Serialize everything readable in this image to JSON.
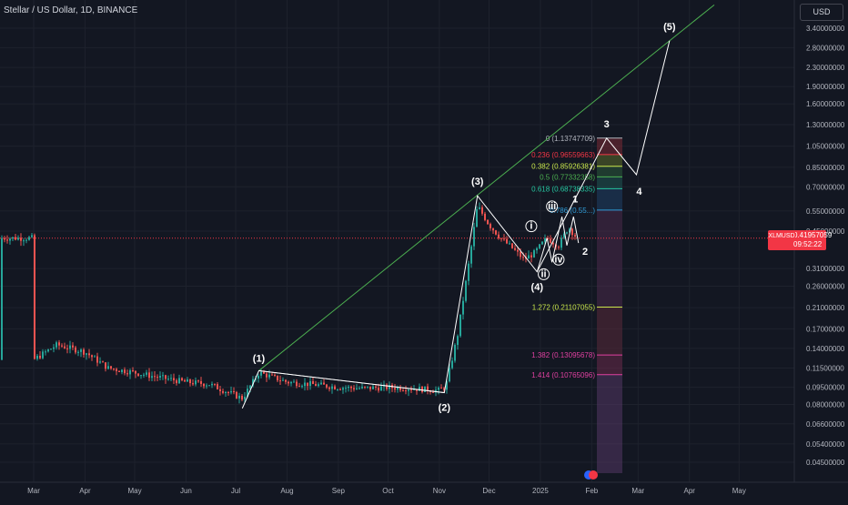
{
  "header": {
    "title": "Stellar / US Dollar, 1D, BINANCE"
  },
  "price_axis": {
    "currency_button": "USD",
    "ticks": [
      "3.40000000",
      "2.80000000",
      "2.30000000",
      "1.90000000",
      "1.60000000",
      "1.30000000",
      "1.05000000",
      "0.85000000",
      "0.70000000",
      "0.55000000",
      "0.45000000",
      "0.31000000",
      "0.26000000",
      "0.21000000",
      "0.17000000",
      "0.14000000",
      "0.11500000",
      "0.09500000",
      "0.08000000",
      "0.06600000",
      "0.05400000",
      "0.04500000"
    ]
  },
  "time_axis": {
    "ticks": [
      "Mar",
      "Apr",
      "May",
      "Jun",
      "Jul",
      "Aug",
      "Sep",
      "Oct",
      "Nov",
      "Dec",
      "2025",
      "Feb",
      "Mar",
      "Apr",
      "May"
    ]
  },
  "last_price": {
    "symbol": "XLMUSD",
    "price": "0.41957059",
    "countdown": "09:52:22",
    "color": "#f23645"
  },
  "fib_levels": [
    {
      "label": "0 (1.13747709)",
      "value": 1.13747709,
      "color": "#b2b5be"
    },
    {
      "label": "0.236 (0.96559663)",
      "value": 0.96559663,
      "color": "#f23645"
    },
    {
      "label": "0.382 (0.85926381)",
      "value": 0.85926381,
      "color": "#c8e64b"
    },
    {
      "label": "0.5 (0.77332358)",
      "value": 0.77332358,
      "color": "#4caf50"
    },
    {
      "label": "0.618 (0.68738335)",
      "value": 0.68738335,
      "color": "#26c6a0"
    },
    {
      "label": "0.786 (0.55...)",
      "value": 0.555,
      "color": "#2f9bd6"
    },
    {
      "label": "1.272 (0.21107055)",
      "value": 0.21107055,
      "color": "#c8e64b"
    },
    {
      "label": "1.382 (0.13095678)",
      "value": 0.13095678,
      "color": "#e040a0"
    },
    {
      "label": "1.414 (0.10765096)",
      "value": 0.10765096,
      "color": "#e040a0"
    }
  ],
  "wave_labels": [
    "(1)",
    "(2)",
    "(3)",
    "(4)",
    "(5)",
    "i",
    "ii",
    "iii",
    "iv",
    "1",
    "2",
    "3",
    "4"
  ],
  "colors": {
    "background": "#131722",
    "up": "#26a69a",
    "down": "#ef5350",
    "wave_line": "#ffffff",
    "trend_line": "#4caf50"
  },
  "chart_data": {
    "type": "candlestick",
    "title": "Stellar / US Dollar, 1D, BINANCE",
    "yscale": "log",
    "ylim": [
      0.04,
      3.6
    ],
    "x_range": [
      "2024-03-01",
      "2025-05-31"
    ],
    "last_price": 0.41957059,
    "series": [
      {
        "name": "XLMUSD",
        "x": [
          "2024-03-01",
          "2024-03-15",
          "2024-04-01",
          "2024-04-15",
          "2024-05-01",
          "2024-05-15",
          "2024-06-01",
          "2024-06-15",
          "2024-07-05",
          "2024-07-15",
          "2024-08-01",
          "2024-08-15",
          "2024-09-01",
          "2024-09-15",
          "2024-10-01",
          "2024-10-15",
          "2024-11-01",
          "2024-11-05",
          "2024-11-12",
          "2024-11-18",
          "2024-11-24",
          "2024-12-01",
          "2024-12-08",
          "2024-12-15",
          "2024-12-22",
          "2024-12-28",
          "2025-01-05",
          "2025-01-12",
          "2025-01-18",
          "2025-01-23"
        ],
        "values": [
          0.125,
          0.145,
          0.135,
          0.115,
          0.11,
          0.105,
          0.1,
          0.098,
          0.085,
          0.11,
          0.1,
          0.098,
          0.095,
          0.094,
          0.095,
          0.094,
          0.092,
          0.096,
          0.16,
          0.3,
          0.58,
          0.48,
          0.42,
          0.38,
          0.34,
          0.36,
          0.42,
          0.39,
          0.47,
          0.42
        ]
      }
    ],
    "wave_points": [
      {
        "label": "(1)",
        "x": "2024-07-15",
        "y": 0.112
      },
      {
        "label": "(2)",
        "x": "2024-11-04",
        "y": 0.09
      },
      {
        "label": "(3)",
        "x": "2024-11-24",
        "y": 0.64
      },
      {
        "label": "(4)",
        "x": "2024-12-30",
        "y": 0.3
      },
      {
        "label": "3",
        "x": "2025-02-10",
        "y": 1.137
      },
      {
        "label": "4",
        "x": "2025-02-28",
        "y": 0.79
      },
      {
        "label": "(5)",
        "x": "2025-03-20",
        "y": 3.0
      }
    ]
  }
}
